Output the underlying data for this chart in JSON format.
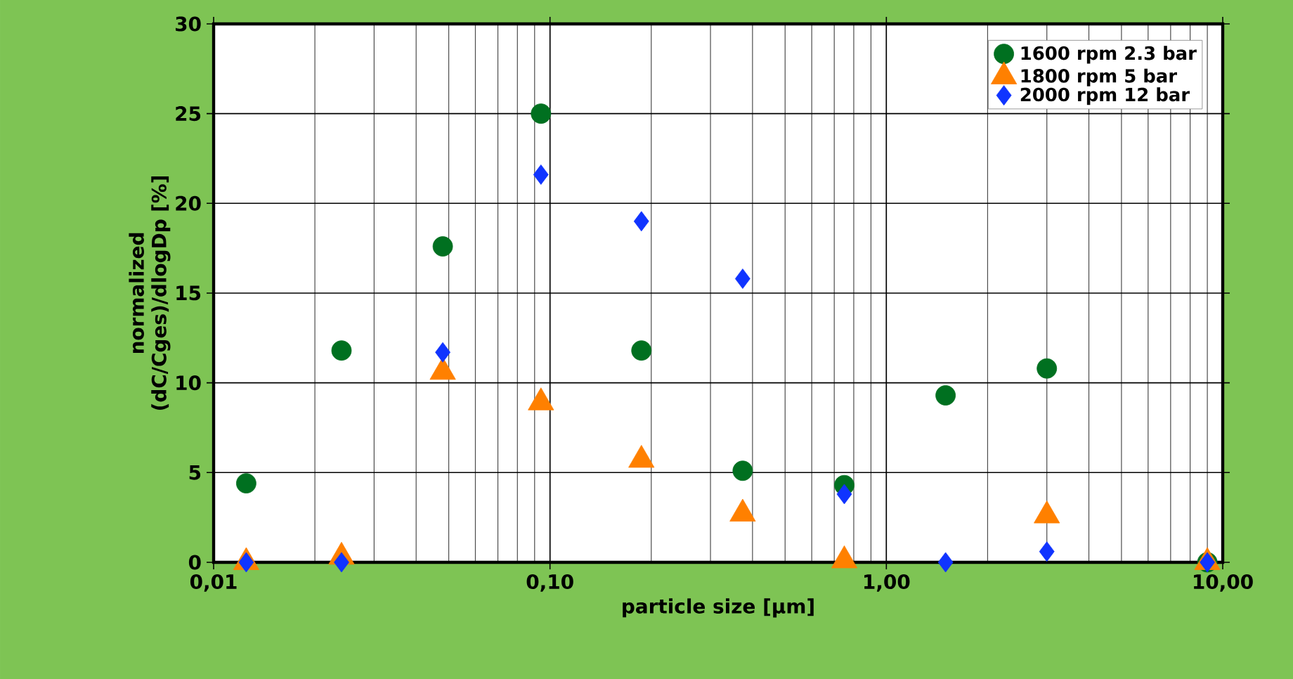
{
  "chart_data": {
    "type": "scatter",
    "xlabel": "particle size [µm]",
    "ylabel": "normalized (dC/Cges)/dlogDp [%]",
    "log": "x",
    "xlim": [
      0.01,
      10
    ],
    "ylim": [
      0,
      30
    ],
    "xticks": [
      {
        "value": 0.01,
        "label": "0,01"
      },
      {
        "value": 0.1,
        "label": "0,10"
      },
      {
        "value": 1,
        "label": "1,00"
      },
      {
        "value": 10,
        "label": "10,00"
      }
    ],
    "yticks": [
      0,
      5,
      10,
      15,
      20,
      25,
      30
    ],
    "grid": true,
    "legend": "top right",
    "x": [
      0.0125,
      0.024,
      0.048,
      0.094,
      0.187,
      0.374,
      0.75,
      1.5,
      3.0,
      9.0
    ],
    "series": [
      {
        "name": "1600 rpm 2.3 bar",
        "color": "#007020",
        "marker": "circle",
        "values": [
          4.4,
          11.8,
          17.6,
          25.0,
          11.8,
          5.1,
          4.3,
          9.3,
          10.8,
          0
        ]
      },
      {
        "name": "1800 rpm 5 bar",
        "color": "#ff8000",
        "marker": "triangle",
        "values": [
          0,
          0.3,
          10.6,
          8.9,
          5.7,
          2.7,
          0.1,
          null,
          2.6,
          0
        ]
      },
      {
        "name": "2000 rpm 12 bar",
        "color": "#1034ff",
        "marker": "diamond",
        "values": [
          0,
          0,
          11.7,
          21.6,
          19.0,
          15.8,
          3.8,
          0,
          0.6,
          0
        ]
      }
    ]
  }
}
